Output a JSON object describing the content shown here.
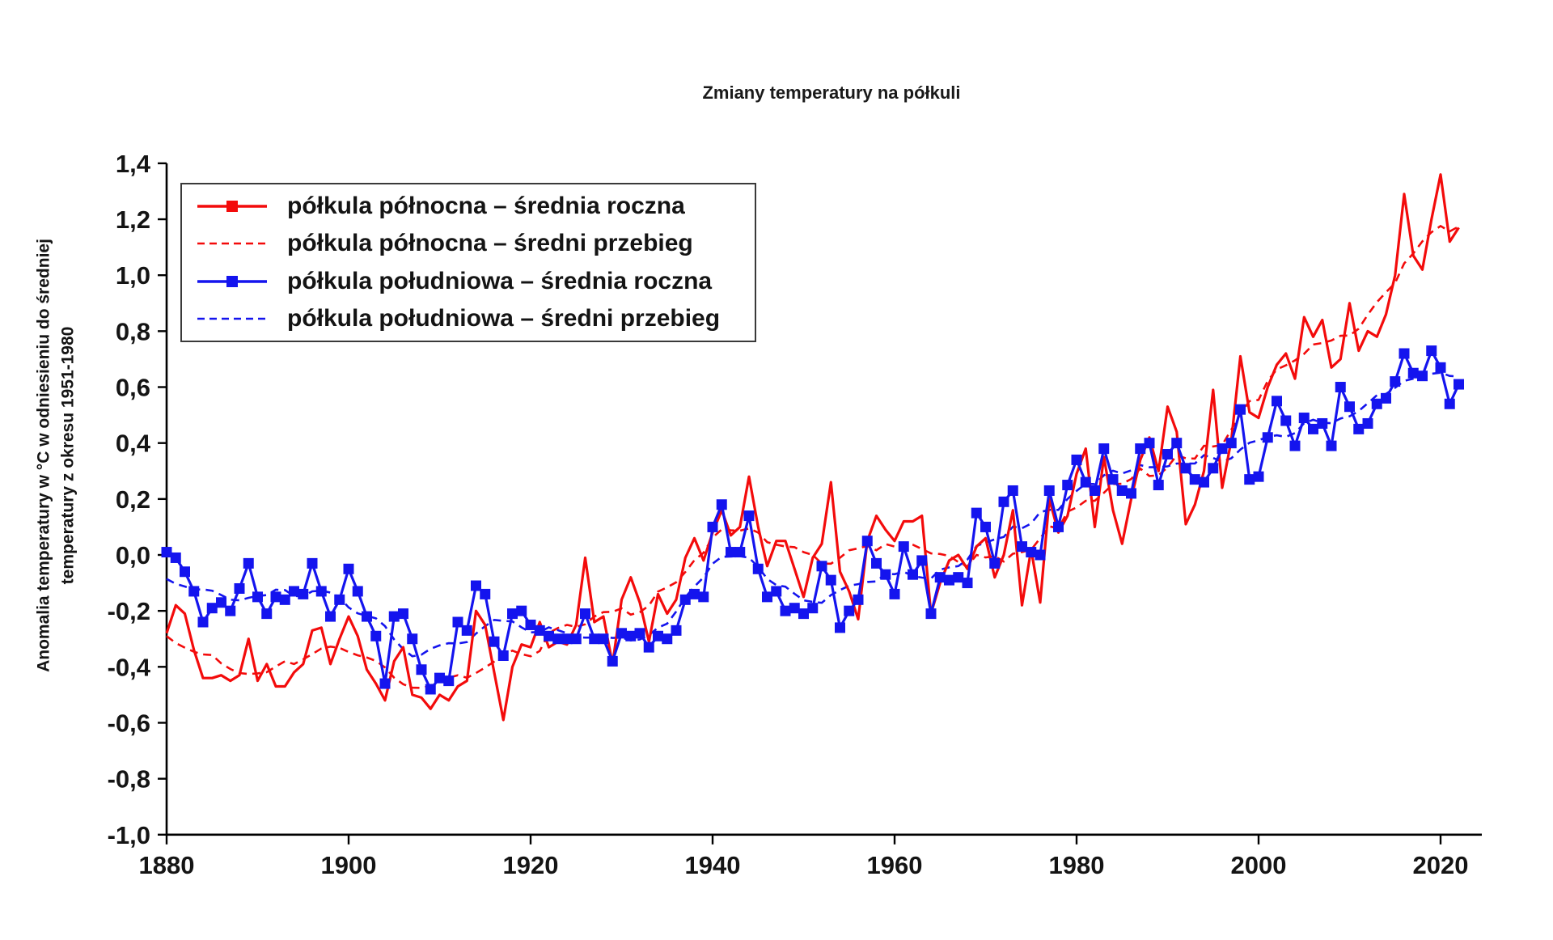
{
  "title": "Zmiany temperatury na półkuli",
  "y_axis": {
    "title_line1": "Anomalia temperatury w °C w odniesieniu do średniej",
    "title_line2": "temperatury z okresu 1951-1980",
    "ticks": [
      {
        "v": -1.0,
        "label": "-1,0"
      },
      {
        "v": -0.8,
        "label": "-0,8"
      },
      {
        "v": -0.6,
        "label": "-0,6"
      },
      {
        "v": -0.4,
        "label": "-0,4"
      },
      {
        "v": -0.2,
        "label": "-0,2"
      },
      {
        "v": 0.0,
        "label": "0,0"
      },
      {
        "v": 0.2,
        "label": "0,2"
      },
      {
        "v": 0.4,
        "label": "0,4"
      },
      {
        "v": 0.6,
        "label": "0,6"
      },
      {
        "v": 0.8,
        "label": "0,8"
      },
      {
        "v": 1.0,
        "label": "1,0"
      },
      {
        "v": 1.2,
        "label": "1,2"
      },
      {
        "v": 1.4,
        "label": "1,4"
      }
    ]
  },
  "x_axis": {
    "ticks": [
      {
        "v": 1880,
        "label": "1880"
      },
      {
        "v": 1900,
        "label": "1900"
      },
      {
        "v": 1920,
        "label": "1920"
      },
      {
        "v": 1940,
        "label": "1940"
      },
      {
        "v": 1960,
        "label": "1960"
      },
      {
        "v": 1980,
        "label": "1980"
      },
      {
        "v": 2000,
        "label": "2000"
      },
      {
        "v": 2020,
        "label": "2020"
      }
    ]
  },
  "colors": {
    "northern": "#f30b0b",
    "southern": "#1414ee",
    "axis": "#000000",
    "text": "#141414",
    "background": "#ffffff",
    "legend_border": "#3a3a3a"
  },
  "legend": {
    "items": [
      {
        "label": "półkula północna – średnia roczna",
        "color": "#f30b0b",
        "style": "solid",
        "marker": true
      },
      {
        "label": "półkula północna – średni przebieg",
        "color": "#f30b0b",
        "style": "dashed",
        "marker": false
      },
      {
        "label": "półkula południowa – średnia roczna",
        "color": "#1414ee",
        "style": "solid",
        "marker": true
      },
      {
        "label": "półkula południowa – średni przebieg",
        "color": "#1414ee",
        "style": "dashed",
        "marker": false
      }
    ]
  },
  "chart_data": {
    "type": "line",
    "title": "Zmiany temperatury na półkuli",
    "xlabel": "",
    "ylabel": "Anomalia temperatury w °C w odniesieniu do średniej temperatury z okresu 1951-1980",
    "xlim": [
      1880,
      2024.5
    ],
    "ylim": [
      -1.0,
      1.4
    ],
    "grid": false,
    "legend_position": "upper left",
    "x_years": {
      "start": 1880,
      "end": 2022,
      "step": 1
    },
    "series": [
      {
        "name": "półkula północna – średnia roczna",
        "color": "#f30b0b",
        "style": "solid",
        "marker": "none",
        "values": [
          -0.28,
          -0.18,
          -0.21,
          -0.34,
          -0.44,
          -0.44,
          -0.43,
          -0.45,
          -0.43,
          -0.3,
          -0.45,
          -0.39,
          -0.47,
          -0.47,
          -0.42,
          -0.39,
          -0.27,
          -0.26,
          -0.39,
          -0.3,
          -0.22,
          -0.29,
          -0.41,
          -0.46,
          -0.52,
          -0.38,
          -0.33,
          -0.5,
          -0.51,
          -0.55,
          -0.5,
          -0.52,
          -0.47,
          -0.45,
          -0.2,
          -0.25,
          -0.42,
          -0.59,
          -0.4,
          -0.32,
          -0.33,
          -0.24,
          -0.33,
          -0.31,
          -0.32,
          -0.25,
          -0.01,
          -0.24,
          -0.22,
          -0.39,
          -0.16,
          -0.08,
          -0.17,
          -0.31,
          -0.14,
          -0.21,
          -0.16,
          -0.01,
          0.06,
          -0.02,
          0.08,
          0.16,
          0.07,
          0.1,
          0.28,
          0.1,
          -0.04,
          0.05,
          0.05,
          -0.05,
          -0.15,
          -0.01,
          0.04,
          0.26,
          -0.06,
          -0.13,
          -0.23,
          0.05,
          0.14,
          0.09,
          0.05,
          0.12,
          0.12,
          0.14,
          -0.21,
          -0.1,
          -0.02,
          0.0,
          -0.05,
          0.03,
          0.06,
          -0.08,
          0.0,
          0.16,
          -0.18,
          0.02,
          -0.17,
          0.2,
          0.08,
          0.14,
          0.29,
          0.38,
          0.1,
          0.35,
          0.16,
          0.04,
          0.2,
          0.34,
          0.42,
          0.3,
          0.53,
          0.44,
          0.11,
          0.18,
          0.3,
          0.59,
          0.24,
          0.41,
          0.71,
          0.51,
          0.49,
          0.6,
          0.68,
          0.72,
          0.63,
          0.85,
          0.78,
          0.84,
          0.67,
          0.7,
          0.9,
          0.73,
          0.8,
          0.78,
          0.86,
          1.0,
          1.29,
          1.07,
          1.02,
          1.2,
          1.36,
          1.12,
          1.17
        ]
      },
      {
        "name": "półkula północna – średni przebieg",
        "color": "#f30b0b",
        "style": "dashed",
        "marker": "none",
        "derived": "centered_moving_average_window9_of_series_0"
      },
      {
        "name": "półkula południowa – średnia roczna",
        "color": "#1414ee",
        "style": "solid",
        "marker": "square",
        "values": [
          0.01,
          -0.01,
          -0.06,
          -0.13,
          -0.24,
          -0.19,
          -0.17,
          -0.2,
          -0.12,
          -0.03,
          -0.15,
          -0.21,
          -0.15,
          -0.16,
          -0.13,
          -0.14,
          -0.03,
          -0.13,
          -0.22,
          -0.16,
          -0.05,
          -0.13,
          -0.22,
          -0.29,
          -0.46,
          -0.22,
          -0.21,
          -0.3,
          -0.41,
          -0.48,
          -0.44,
          -0.45,
          -0.24,
          -0.27,
          -0.11,
          -0.14,
          -0.31,
          -0.36,
          -0.21,
          -0.2,
          -0.25,
          -0.27,
          -0.29,
          -0.3,
          -0.3,
          -0.3,
          -0.21,
          -0.3,
          -0.3,
          -0.38,
          -0.28,
          -0.29,
          -0.28,
          -0.33,
          -0.29,
          -0.3,
          -0.27,
          -0.16,
          -0.14,
          -0.15,
          0.1,
          0.18,
          0.01,
          0.01,
          0.14,
          -0.05,
          -0.15,
          -0.13,
          -0.2,
          -0.19,
          -0.21,
          -0.19,
          -0.04,
          -0.09,
          -0.26,
          -0.2,
          -0.16,
          0.05,
          -0.03,
          -0.07,
          -0.14,
          0.03,
          -0.07,
          -0.02,
          -0.21,
          -0.08,
          -0.09,
          -0.08,
          -0.1,
          0.15,
          0.1,
          -0.03,
          0.19,
          0.23,
          0.03,
          0.01,
          0.0,
          0.23,
          0.1,
          0.25,
          0.34,
          0.26,
          0.23,
          0.38,
          0.27,
          0.23,
          0.22,
          0.38,
          0.4,
          0.25,
          0.36,
          0.4,
          0.31,
          0.27,
          0.26,
          0.31,
          0.38,
          0.4,
          0.52,
          0.27,
          0.28,
          0.42,
          0.55,
          0.48,
          0.39,
          0.49,
          0.45,
          0.47,
          0.39,
          0.6,
          0.53,
          0.45,
          0.47,
          0.54,
          0.56,
          0.62,
          0.72,
          0.65,
          0.64,
          0.73,
          0.67,
          0.54,
          0.61
        ]
      },
      {
        "name": "półkula południowa – średni przebieg",
        "color": "#1414ee",
        "style": "dashed",
        "marker": "none",
        "derived": "centered_moving_average_window9_of_series_2"
      }
    ]
  }
}
